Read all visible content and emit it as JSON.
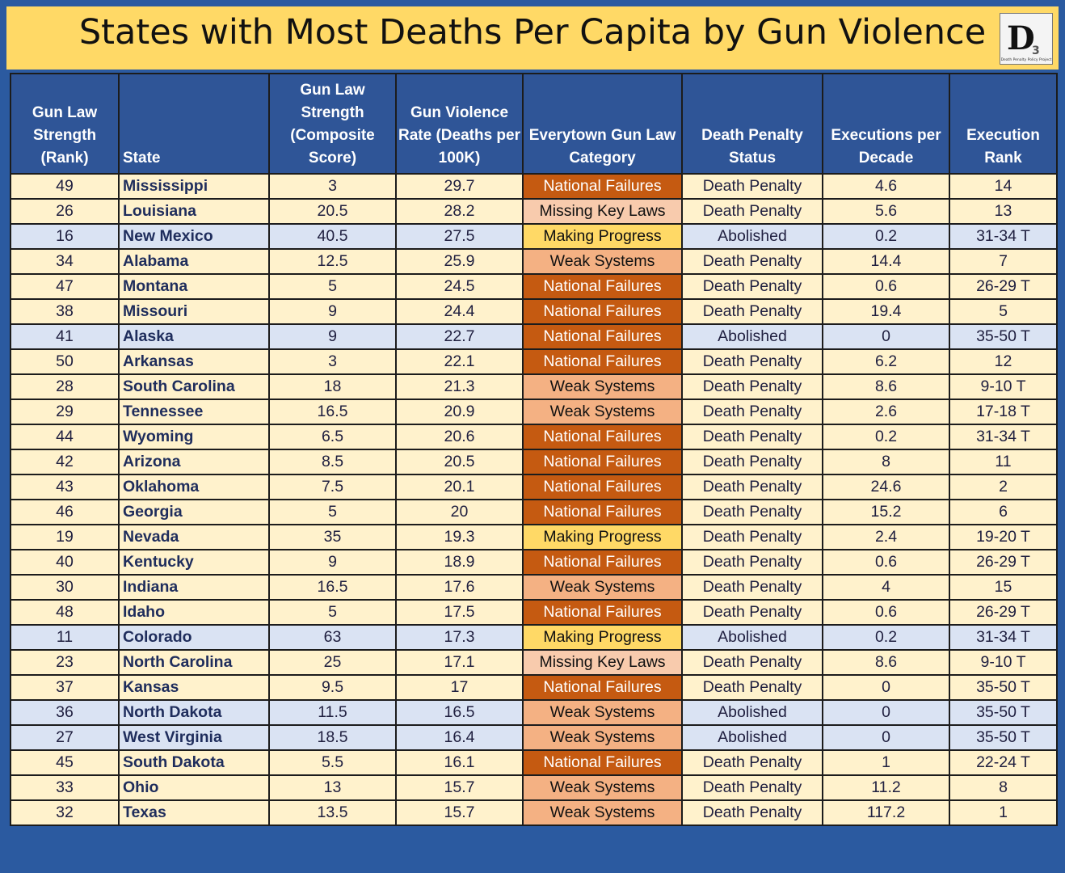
{
  "title": "States with Most Deaths Per Capita by Gun Violence",
  "logo": {
    "text": "D3",
    "caption": "Death Penalty Policy Project"
  },
  "columns": [
    "Gun Law Strength (Rank)",
    "State",
    "Gun Law Strength (Composite Score)",
    "Gun Violence Rate (Deaths per 100K)",
    "Everytown Gun Law Category",
    "Death Penalty Status",
    "Executions per Decade",
    "Execution Rank"
  ],
  "colors": {
    "header": "#2f5597",
    "death_penalty_row": "#fff2cc",
    "abolished_row": "#dae3f3",
    "national_failures": "#c55a11",
    "missing_key_laws": "#f8cbad",
    "making_progress": "#ffd966",
    "weak_systems": "#f4b183"
  },
  "rows": [
    {
      "rank": "49",
      "state": "Mississippi",
      "score": "3",
      "rate": "29.7",
      "category": "National Failures",
      "status": "Death Penalty",
      "exec": "4.6",
      "exec_rank": "14"
    },
    {
      "rank": "26",
      "state": "Louisiana",
      "score": "20.5",
      "rate": "28.2",
      "category": "Missing Key Laws",
      "status": "Death Penalty",
      "exec": "5.6",
      "exec_rank": "13"
    },
    {
      "rank": "16",
      "state": "New Mexico",
      "score": "40.5",
      "rate": "27.5",
      "category": "Making Progress",
      "status": "Abolished",
      "exec": "0.2",
      "exec_rank": "31-34 T"
    },
    {
      "rank": "34",
      "state": "Alabama",
      "score": "12.5",
      "rate": "25.9",
      "category": "Weak Systems",
      "status": "Death Penalty",
      "exec": "14.4",
      "exec_rank": "7"
    },
    {
      "rank": "47",
      "state": "Montana",
      "score": "5",
      "rate": "24.5",
      "category": "National Failures",
      "status": "Death Penalty",
      "exec": "0.6",
      "exec_rank": "26-29 T"
    },
    {
      "rank": "38",
      "state": "Missouri",
      "score": "9",
      "rate": "24.4",
      "category": "National Failures",
      "status": "Death Penalty",
      "exec": "19.4",
      "exec_rank": "5"
    },
    {
      "rank": "41",
      "state": "Alaska",
      "score": "9",
      "rate": "22.7",
      "category": "National Failures",
      "status": "Abolished",
      "exec": "0",
      "exec_rank": "35-50 T"
    },
    {
      "rank": "50",
      "state": "Arkansas",
      "score": "3",
      "rate": "22.1",
      "category": "National Failures",
      "status": "Death Penalty",
      "exec": "6.2",
      "exec_rank": "12"
    },
    {
      "rank": "28",
      "state": "South Carolina",
      "score": "18",
      "rate": "21.3",
      "category": "Weak Systems",
      "status": "Death Penalty",
      "exec": "8.6",
      "exec_rank": "9-10 T"
    },
    {
      "rank": "29",
      "state": "Tennessee",
      "score": "16.5",
      "rate": "20.9",
      "category": "Weak Systems",
      "status": "Death Penalty",
      "exec": "2.6",
      "exec_rank": "17-18 T"
    },
    {
      "rank": "44",
      "state": "Wyoming",
      "score": "6.5",
      "rate": "20.6",
      "category": "National Failures",
      "status": "Death Penalty",
      "exec": "0.2",
      "exec_rank": "31-34 T"
    },
    {
      "rank": "42",
      "state": "Arizona",
      "score": "8.5",
      "rate": "20.5",
      "category": "National Failures",
      "status": "Death Penalty",
      "exec": "8",
      "exec_rank": "11"
    },
    {
      "rank": "43",
      "state": "Oklahoma",
      "score": "7.5",
      "rate": "20.1",
      "category": "National Failures",
      "status": "Death Penalty",
      "exec": "24.6",
      "exec_rank": "2"
    },
    {
      "rank": "46",
      "state": "Georgia",
      "score": "5",
      "rate": "20",
      "category": "National Failures",
      "status": "Death Penalty",
      "exec": "15.2",
      "exec_rank": "6"
    },
    {
      "rank": "19",
      "state": "Nevada",
      "score": "35",
      "rate": "19.3",
      "category": "Making Progress",
      "status": "Death Penalty",
      "exec": "2.4",
      "exec_rank": "19-20 T"
    },
    {
      "rank": "40",
      "state": "Kentucky",
      "score": "9",
      "rate": "18.9",
      "category": "National Failures",
      "status": "Death Penalty",
      "exec": "0.6",
      "exec_rank": "26-29 T"
    },
    {
      "rank": "30",
      "state": "Indiana",
      "score": "16.5",
      "rate": "17.6",
      "category": "Weak Systems",
      "status": "Death Penalty",
      "exec": "4",
      "exec_rank": "15"
    },
    {
      "rank": "48",
      "state": "Idaho",
      "score": "5",
      "rate": "17.5",
      "category": "National Failures",
      "status": "Death Penalty",
      "exec": "0.6",
      "exec_rank": "26-29 T"
    },
    {
      "rank": "11",
      "state": "Colorado",
      "score": "63",
      "rate": "17.3",
      "category": "Making Progress",
      "status": "Abolished",
      "exec": "0.2",
      "exec_rank": "31-34 T"
    },
    {
      "rank": "23",
      "state": "North Carolina",
      "score": "25",
      "rate": "17.1",
      "category": "Missing Key Laws",
      "status": "Death Penalty",
      "exec": "8.6",
      "exec_rank": "9-10 T"
    },
    {
      "rank": "37",
      "state": "Kansas",
      "score": "9.5",
      "rate": "17",
      "category": "National Failures",
      "status": "Death Penalty",
      "exec": "0",
      "exec_rank": "35-50 T"
    },
    {
      "rank": "36",
      "state": "North Dakota",
      "score": "11.5",
      "rate": "16.5",
      "category": "Weak Systems",
      "status": "Abolished",
      "exec": "0",
      "exec_rank": "35-50 T"
    },
    {
      "rank": "27",
      "state": "West Virginia",
      "score": "18.5",
      "rate": "16.4",
      "category": "Weak Systems",
      "status": "Abolished",
      "exec": "0",
      "exec_rank": "35-50 T"
    },
    {
      "rank": "45",
      "state": "South Dakota",
      "score": "5.5",
      "rate": "16.1",
      "category": "National Failures",
      "status": "Death Penalty",
      "exec": "1",
      "exec_rank": "22-24 T"
    },
    {
      "rank": "33",
      "state": "Ohio",
      "score": "13",
      "rate": "15.7",
      "category": "Weak Systems",
      "status": "Death Penalty",
      "exec": "11.2",
      "exec_rank": "8"
    },
    {
      "rank": "32",
      "state": "Texas",
      "score": "13.5",
      "rate": "15.7",
      "category": "Weak Systems",
      "status": "Death Penalty",
      "exec": "117.2",
      "exec_rank": "1"
    }
  ]
}
